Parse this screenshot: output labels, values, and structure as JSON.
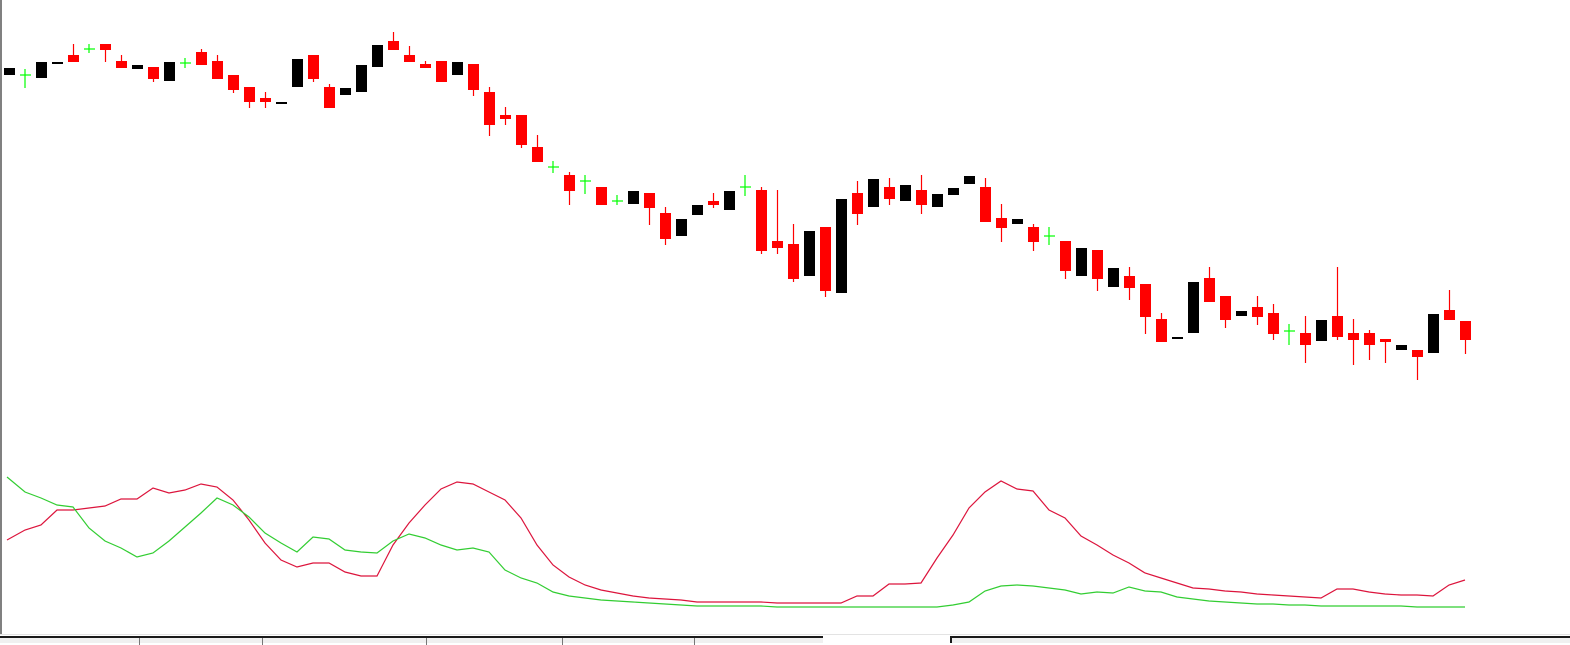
{
  "chart_data": {
    "type": "candlestick",
    "title": "",
    "colors": {
      "bearish": "#ff0000",
      "bullish": "#000000",
      "doji": "#00ff00",
      "indicator_line_1": "#dc143c",
      "indicator_line_2": "#32cd32"
    },
    "grid": false,
    "price_panel": {
      "ohlc": [
        [
          325,
          332,
          325,
          332
        ],
        [
          325,
          331,
          312,
          325
        ],
        [
          322,
          338,
          322,
          338
        ],
        [
          336,
          338,
          336,
          338
        ],
        [
          345,
          356,
          338,
          338
        ],
        [
          351,
          356,
          347,
          351
        ],
        [
          356,
          356,
          338,
          350
        ],
        [
          339,
          345,
          332,
          332
        ],
        [
          331,
          335,
          331,
          335
        ],
        [
          333,
          333,
          318,
          321
        ],
        [
          319,
          338,
          319,
          338
        ],
        [
          337,
          342,
          332,
          337
        ],
        [
          348,
          351,
          335,
          335
        ],
        [
          339,
          345,
          321,
          321
        ],
        [
          325,
          325,
          307,
          310
        ],
        [
          313,
          313,
          292,
          298
        ],
        [
          302,
          308,
          292,
          298
        ],
        [
          296,
          298,
          296,
          298
        ],
        [
          313,
          341,
          313,
          341
        ],
        [
          345,
          345,
          318,
          321
        ],
        [
          313,
          316,
          292,
          292
        ],
        [
          305,
          312,
          305,
          312
        ],
        [
          308,
          335,
          308,
          335
        ],
        [
          333,
          355,
          333,
          355
        ],
        [
          359,
          368,
          350,
          350
        ],
        [
          345,
          354,
          338,
          338
        ],
        [
          336,
          339,
          332,
          332
        ],
        [
          339,
          339,
          318,
          318
        ],
        [
          325,
          338,
          325,
          338
        ],
        [
          336,
          336,
          304,
          310
        ],
        [
          308,
          313,
          264,
          275
        ],
        [
          285,
          293,
          275,
          281
        ],
        [
          285,
          285,
          252,
          255
        ],
        [
          253,
          265,
          238,
          238
        ],
        [
          233,
          239,
          227,
          233
        ],
        [
          225,
          228,
          195,
          209
        ],
        [
          219,
          225,
          206,
          219
        ],
        [
          213,
          213,
          195,
          195
        ],
        [
          199,
          205,
          195,
          199
        ],
        [
          196,
          209,
          196,
          209
        ],
        [
          207,
          207,
          175,
          192
        ],
        [
          187,
          193,
          155,
          161
        ],
        [
          164,
          181,
          164,
          181
        ],
        [
          185,
          195,
          185,
          195
        ],
        [
          199,
          207,
          192,
          195
        ],
        [
          190,
          209,
          190,
          209
        ],
        [
          213,
          225,
          204,
          213
        ],
        [
          210,
          213,
          146,
          149
        ],
        [
          159,
          210,
          146,
          152
        ],
        [
          156,
          176,
          118,
          121
        ],
        [
          124,
          169,
          124,
          169
        ],
        [
          173,
          173,
          103,
          109
        ],
        [
          107,
          201,
          107,
          201
        ],
        [
          207,
          219,
          175,
          186
        ],
        [
          193,
          221,
          193,
          221
        ],
        [
          213,
          222,
          195,
          201
        ],
        [
          199,
          215,
          199,
          215
        ],
        [
          210,
          225,
          186,
          195
        ],
        [
          193,
          206,
          193,
          206
        ],
        [
          205,
          212,
          205,
          212
        ],
        [
          216,
          224,
          216,
          224
        ],
        [
          213,
          222,
          178,
          178
        ],
        [
          182,
          196,
          158,
          172
        ],
        [
          176,
          181,
          176,
          181
        ],
        [
          173,
          176,
          149,
          158
        ],
        [
          164,
          173,
          155,
          164
        ],
        [
          159,
          159,
          121,
          129
        ],
        [
          124,
          152,
          124,
          152
        ],
        [
          150,
          150,
          109,
          121
        ],
        [
          113,
          132,
          113,
          132
        ],
        [
          124,
          133,
          100,
          112
        ],
        [
          116,
          116,
          66,
          83
        ],
        [
          81,
          87,
          58,
          58
        ],
        [
          61,
          63,
          61,
          63
        ],
        [
          67,
          118,
          67,
          118
        ],
        [
          122,
          133,
          98,
          98
        ],
        [
          104,
          104,
          72,
          80
        ],
        [
          84,
          89,
          84,
          89
        ],
        [
          93,
          104,
          75,
          83
        ],
        [
          87,
          96,
          60,
          66
        ],
        [
          69,
          76,
          55,
          69
        ],
        [
          67,
          84,
          37,
          55
        ],
        [
          59,
          80,
          59,
          80
        ],
        [
          84,
          133,
          60,
          63
        ],
        [
          67,
          81,
          35,
          60
        ],
        [
          67,
          70,
          40,
          55
        ],
        [
          61,
          61,
          37,
          58
        ],
        [
          50,
          55,
          50,
          55
        ],
        [
          50,
          50,
          20,
          43
        ],
        [
          47,
          86,
          47,
          86
        ],
        [
          90,
          110,
          80,
          80
        ],
        [
          79,
          79,
          46,
          60
        ]
      ]
    },
    "indicator_panel": {
      "type": "line",
      "series": [
        {
          "values": [
            70,
            80,
            85,
            100,
            100,
            102,
            104,
            111,
            111,
            122,
            117,
            120,
            126,
            123,
            110,
            90,
            67,
            50,
            43,
            47,
            47,
            38,
            34,
            34,
            65,
            87,
            105,
            121,
            128,
            126,
            118,
            110,
            92,
            65,
            45,
            33,
            25,
            20,
            17,
            14,
            12,
            11,
            10,
            8,
            8,
            8,
            8,
            8,
            7,
            7,
            7,
            7,
            7,
            14,
            14,
            26,
            26,
            27,
            52,
            75,
            102,
            118,
            129,
            121,
            119,
            100,
            92,
            74,
            65,
            55,
            47,
            37,
            32,
            27,
            22,
            21,
            19,
            18,
            16,
            15,
            14,
            13,
            12,
            21,
            21,
            18,
            16,
            15,
            15,
            14,
            25,
            30
          ]
        },
        {
          "values": [
            133,
            118,
            112,
            105,
            103,
            82,
            69,
            62,
            53,
            57,
            69,
            83,
            97,
            112,
            105,
            93,
            77,
            67,
            58,
            73,
            71,
            60,
            58,
            57,
            69,
            76,
            72,
            65,
            60,
            62,
            58,
            40,
            32,
            27,
            18,
            14,
            12,
            10,
            9,
            8,
            7,
            6,
            5,
            4,
            4,
            4,
            4,
            4,
            3,
            3,
            3,
            3,
            3,
            3,
            3,
            3,
            3,
            3,
            3,
            5,
            8,
            19,
            24,
            25,
            24,
            22,
            20,
            16,
            18,
            17,
            23,
            19,
            18,
            13,
            11,
            9,
            8,
            7,
            6,
            6,
            5,
            5,
            4,
            4,
            4,
            4,
            4,
            4,
            3,
            3,
            3,
            3
          ]
        }
      ]
    }
  },
  "tabs": [
    {
      "label": ""
    },
    {
      "label": ""
    },
    {
      "label": ""
    },
    {
      "label": ""
    },
    {
      "label": ""
    },
    {
      "label": ""
    }
  ]
}
